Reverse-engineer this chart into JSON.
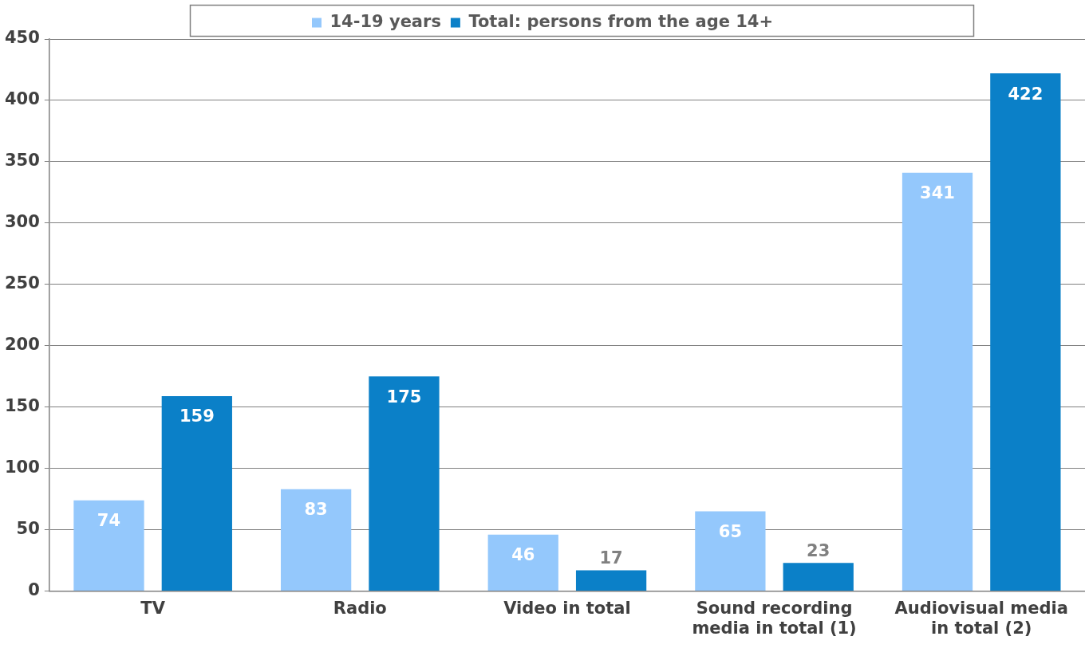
{
  "chart_data": {
    "type": "bar",
    "categories": [
      "TV",
      "Radio",
      "Video in total",
      "Sound recording media in total (1)",
      "Audiovisual media in total (2)"
    ],
    "series": [
      {
        "name": "14-19 years",
        "color": "#94c8fc",
        "values": [
          74,
          83,
          46,
          65,
          341
        ]
      },
      {
        "name": "Total: persons from the age 14+",
        "color": "#0b80c8",
        "values": [
          159,
          175,
          17,
          23,
          422
        ]
      }
    ],
    "ylim": [
      0,
      450
    ],
    "yticks": [
      0,
      50,
      100,
      150,
      200,
      250,
      300,
      350,
      400,
      450
    ],
    "grid": "y",
    "legend": "top",
    "data_labels": true
  }
}
